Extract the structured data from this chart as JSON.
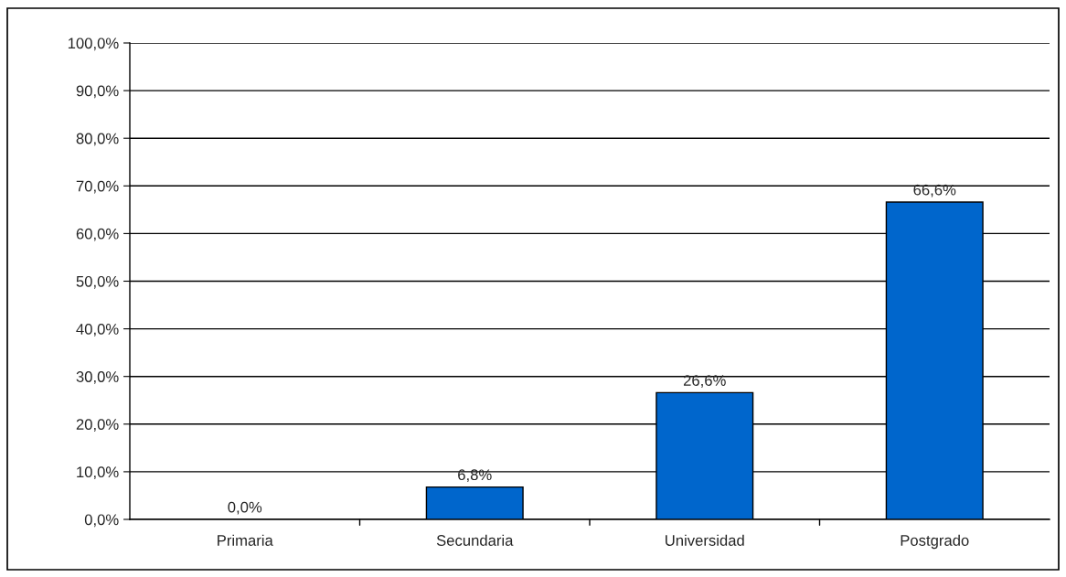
{
  "chart_data": {
    "type": "bar",
    "categories": [
      "Primaria",
      "Secundaria",
      "Universidad",
      "Postgrado"
    ],
    "values": [
      0.0,
      6.8,
      26.6,
      66.6
    ],
    "value_labels": [
      "0,0%",
      "6,8%",
      "26,6%",
      "66,6%"
    ],
    "color": "#0066cc",
    "ylim": [
      0,
      100
    ],
    "yticks": [
      {
        "value": 0,
        "label": "0,0%"
      },
      {
        "value": 10,
        "label": "10,0%"
      },
      {
        "value": 20,
        "label": "20,0%"
      },
      {
        "value": 30,
        "label": "30,0%"
      },
      {
        "value": 40,
        "label": "40,0%"
      },
      {
        "value": 50,
        "label": "50,0%"
      },
      {
        "value": 60,
        "label": "60,0%"
      },
      {
        "value": 70,
        "label": "70,0%"
      },
      {
        "value": 80,
        "label": "80,0%"
      },
      {
        "value": 90,
        "label": "90,0%"
      },
      {
        "value": 100,
        "label": "100,0%"
      }
    ],
    "grid": "y",
    "legend": false
  }
}
